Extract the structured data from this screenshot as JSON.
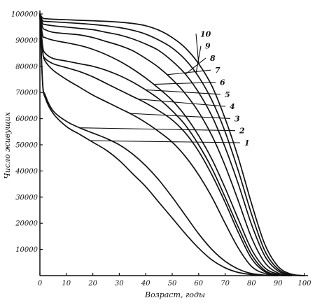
{
  "chart_data": {
    "type": "line",
    "xlabel": "Возраст, годы",
    "ylabel": "Число живущих",
    "xlim": [
      0,
      100
    ],
    "ylim": [
      0,
      100000
    ],
    "x_ticks": [
      "0",
      "10",
      "20",
      "30",
      "40",
      "50",
      "60",
      "70",
      "80",
      "90",
      "100"
    ],
    "y_ticks": [
      "10000",
      "20000",
      "30000",
      "40000",
      "50000",
      "60000",
      "70000",
      "80000",
      "90000",
      "100000"
    ],
    "grid": false,
    "series": [
      {
        "name": "1",
        "x": [
          0,
          1,
          2,
          5,
          10,
          15,
          20,
          25,
          30,
          35,
          40,
          45,
          50,
          55,
          60,
          65,
          70,
          75,
          80,
          85,
          90
        ],
        "values": [
          100000,
          74000,
          68000,
          62000,
          57000,
          54000,
          51000,
          48000,
          44000,
          39000,
          34000,
          28000,
          22000,
          16000,
          10500,
          6000,
          3000,
          1200,
          400,
          100,
          0
        ]
      },
      {
        "name": "2",
        "x": [
          0,
          1,
          2,
          5,
          10,
          15,
          20,
          25,
          30,
          35,
          40,
          45,
          50,
          55,
          60,
          65,
          70,
          75,
          80,
          85,
          90
        ],
        "values": [
          100000,
          74000,
          69000,
          63000,
          59000,
          56500,
          54500,
          52500,
          50000,
          46500,
          42000,
          36500,
          30000,
          23000,
          16000,
          10000,
          5500,
          2500,
          800,
          200,
          0
        ]
      },
      {
        "name": "3",
        "x": [
          0,
          1,
          2,
          5,
          10,
          15,
          20,
          25,
          30,
          35,
          40,
          45,
          50,
          55,
          60,
          65,
          70,
          75,
          80,
          85,
          90,
          95
        ],
        "values": [
          100000,
          86000,
          82000,
          78500,
          75000,
          72000,
          69000,
          66500,
          64000,
          61500,
          58500,
          55000,
          51000,
          45500,
          38500,
          30000,
          20000,
          10500,
          3500,
          800,
          100,
          0
        ]
      },
      {
        "name": "4",
        "x": [
          0,
          1,
          2,
          5,
          10,
          15,
          20,
          25,
          30,
          35,
          40,
          45,
          50,
          55,
          60,
          65,
          70,
          75,
          80,
          85,
          90,
          95
        ],
        "values": [
          100000,
          86000,
          83000,
          81000,
          79500,
          78000,
          76000,
          73500,
          71000,
          68500,
          66000,
          63000,
          59500,
          54500,
          47500,
          38500,
          28000,
          16500,
          6500,
          1500,
          200,
          0
        ]
      },
      {
        "name": "5",
        "x": [
          0,
          1,
          2,
          5,
          10,
          15,
          20,
          25,
          30,
          35,
          40,
          45,
          50,
          55,
          60,
          65,
          70,
          75,
          80,
          85,
          90,
          95
        ],
        "values": [
          100000,
          88000,
          85000,
          83000,
          82000,
          81000,
          80000,
          78500,
          76500,
          74000,
          71000,
          67500,
          63000,
          57500,
          50000,
          41000,
          30000,
          18500,
          8000,
          2000,
          300,
          0
        ]
      },
      {
        "name": "6",
        "x": [
          0,
          1,
          2,
          5,
          10,
          15,
          20,
          25,
          30,
          35,
          40,
          45,
          50,
          55,
          60,
          65,
          70,
          75,
          80,
          85,
          90,
          95
        ],
        "values": [
          100000,
          92000,
          91000,
          90000,
          89000,
          88000,
          86500,
          84500,
          82000,
          79000,
          75500,
          71500,
          67000,
          61000,
          53500,
          44500,
          33500,
          21500,
          10000,
          3000,
          600,
          0
        ]
      },
      {
        "name": "7",
        "x": [
          0,
          1,
          2,
          5,
          10,
          15,
          20,
          25,
          30,
          35,
          40,
          45,
          50,
          55,
          60,
          65,
          70,
          75,
          80,
          85,
          90,
          95
        ],
        "values": [
          100000,
          95000,
          94000,
          93000,
          92500,
          92000,
          91000,
          89500,
          88000,
          86000,
          83000,
          79500,
          75000,
          69500,
          62500,
          53500,
          42000,
          28500,
          14500,
          5000,
          1000,
          0
        ]
      },
      {
        "name": "8",
        "x": [
          0,
          1,
          2,
          5,
          10,
          15,
          20,
          25,
          30,
          35,
          40,
          45,
          50,
          55,
          60,
          65,
          70,
          75,
          80,
          85,
          90,
          95,
          100
        ],
        "values": [
          100000,
          96500,
          96000,
          95500,
          95000,
          94500,
          94000,
          93000,
          92000,
          90500,
          88500,
          86000,
          82000,
          77000,
          70000,
          61000,
          49000,
          35000,
          19500,
          7500,
          1800,
          300,
          0
        ]
      },
      {
        "name": "9",
        "x": [
          0,
          1,
          2,
          5,
          10,
          15,
          20,
          25,
          30,
          35,
          40,
          45,
          50,
          55,
          60,
          65,
          70,
          75,
          80,
          85,
          90,
          95,
          100
        ],
        "values": [
          100000,
          97500,
          97200,
          97000,
          96700,
          96400,
          96000,
          95500,
          94800,
          93800,
          92300,
          90000,
          87000,
          82500,
          76000,
          67000,
          55000,
          40000,
          23500,
          9500,
          2500,
          400,
          0
        ]
      },
      {
        "name": "10",
        "x": [
          0,
          1,
          2,
          5,
          10,
          15,
          20,
          25,
          30,
          35,
          40,
          45,
          50,
          55,
          60,
          65,
          70,
          75,
          80,
          85,
          90,
          95,
          100
        ],
        "values": [
          100000,
          98500,
          98200,
          98000,
          97800,
          97600,
          97400,
          97200,
          96900,
          96400,
          95500,
          93800,
          91000,
          87000,
          81000,
          72500,
          60000,
          45000,
          27500,
          12000,
          3500,
          600,
          0
        ]
      }
    ]
  }
}
